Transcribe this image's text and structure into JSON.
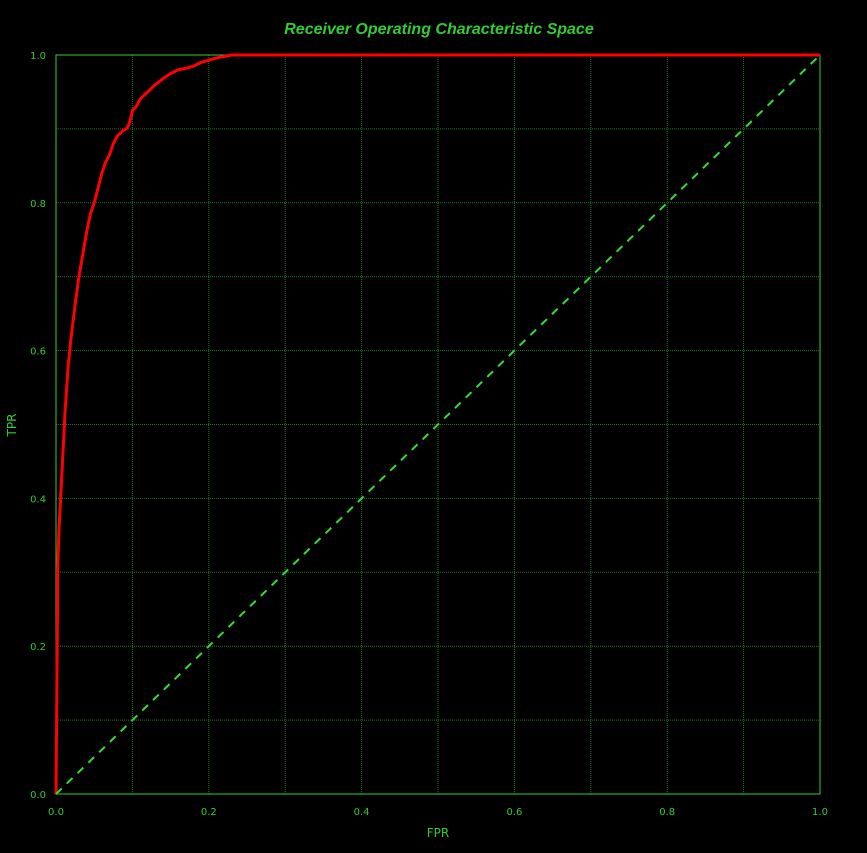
{
  "chart_data": {
    "type": "line",
    "title": "Receiver Operating Characteristic Space",
    "xlabel": "FPR",
    "ylabel": "TPR",
    "xlim": [
      0,
      1
    ],
    "ylim": [
      0,
      1
    ],
    "xticks": [
      "0.0",
      "0.2",
      "0.4",
      "0.6",
      "0.8",
      "1.0"
    ],
    "yticks": [
      "0.0",
      "0.2",
      "0.4",
      "0.6",
      "0.8",
      "1.0"
    ],
    "grid": true,
    "grid_step": 0.1,
    "colors": {
      "background": "#000000",
      "axes": "#33cc33",
      "grid": "#1f7a1f",
      "text": "#33cc33",
      "roc_curve": "#ff0000",
      "diagonal": "#33dd33"
    },
    "series": [
      {
        "style": "solid",
        "x": [
          0,
          0.002,
          0.002,
          0.003,
          0.004,
          0.005,
          0.006,
          0.008,
          0.01,
          0.012,
          0.014,
          0.016,
          0.018,
          0.02,
          0.023,
          0.026,
          0.03,
          0.035,
          0.04,
          0.045,
          0.05,
          0.055,
          0.06,
          0.065,
          0.07,
          0.075,
          0.08,
          0.085,
          0.088,
          0.092,
          0.095,
          0.098,
          0.1,
          0.105,
          0.11,
          0.12,
          0.13,
          0.14,
          0.15,
          0.16,
          0.17,
          0.18,
          0.19,
          0.2,
          0.21,
          0.22,
          0.23,
          0.24,
          0.3,
          0.5,
          0.7,
          1.0
        ],
        "y": [
          0,
          0.25,
          0.3,
          0.33,
          0.36,
          0.38,
          0.4,
          0.44,
          0.48,
          0.52,
          0.55,
          0.58,
          0.6,
          0.62,
          0.645,
          0.67,
          0.7,
          0.73,
          0.76,
          0.785,
          0.8,
          0.82,
          0.84,
          0.855,
          0.865,
          0.88,
          0.89,
          0.895,
          0.898,
          0.9,
          0.905,
          0.915,
          0.925,
          0.93,
          0.94,
          0.95,
          0.96,
          0.968,
          0.975,
          0.98,
          0.982,
          0.985,
          0.99,
          0.993,
          0.996,
          0.998,
          1.0,
          1.0,
          1.0,
          1.0,
          1.0,
          1.0
        ]
      },
      {
        "style": "dashed",
        "x": [
          0,
          1
        ],
        "y": [
          0,
          1
        ]
      }
    ]
  }
}
